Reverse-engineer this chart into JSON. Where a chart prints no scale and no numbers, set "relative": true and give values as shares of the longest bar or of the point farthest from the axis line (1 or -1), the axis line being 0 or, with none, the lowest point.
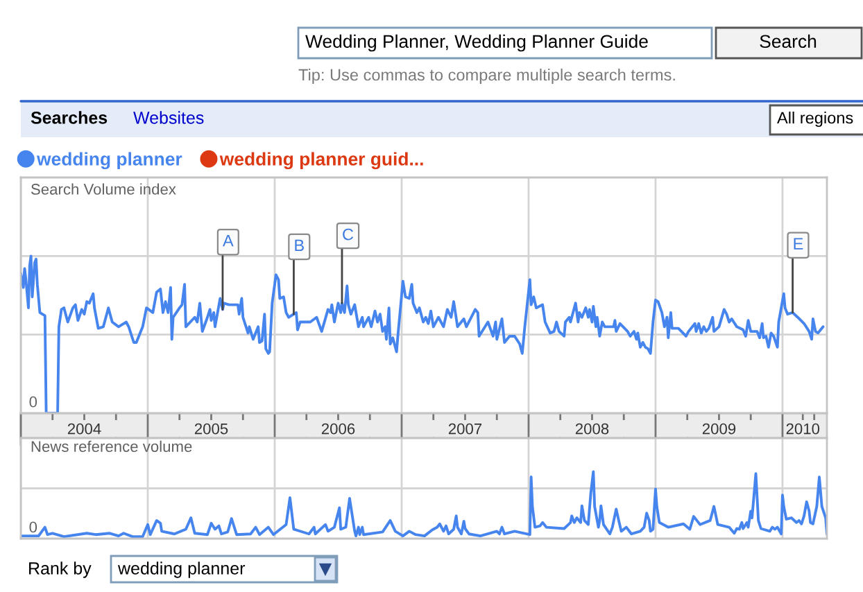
{
  "chart_data": [
    {
      "type": "line",
      "ylabel": "Search Volume index",
      "relative": true,
      "xlim": [
        2004,
        2010.35
      ],
      "xticks": [
        {
          "value": 2004,
          "label": null
        },
        {
          "value": 2004.25,
          "label": null
        },
        {
          "value": 2004.5,
          "label": "2004"
        },
        {
          "value": 2004.75,
          "label": null
        },
        {
          "value": 2005,
          "label": null
        },
        {
          "value": 2005.25,
          "label": null
        },
        {
          "value": 2005.5,
          "label": "2005"
        },
        {
          "value": 2005.75,
          "label": null
        },
        {
          "value": 2006,
          "label": null
        },
        {
          "value": 2006.25,
          "label": null
        },
        {
          "value": 2006.5,
          "label": "2006"
        },
        {
          "value": 2006.75,
          "label": null
        },
        {
          "value": 2007,
          "label": null
        },
        {
          "value": 2007.25,
          "label": null
        },
        {
          "value": 2007.5,
          "label": "2007"
        },
        {
          "value": 2007.75,
          "label": null
        },
        {
          "value": 2008,
          "label": null
        },
        {
          "value": 2008.25,
          "label": null
        },
        {
          "value": 2008.5,
          "label": "2008"
        },
        {
          "value": 2008.75,
          "label": null
        },
        {
          "value": 2009,
          "label": null
        },
        {
          "value": 2009.25,
          "label": null
        },
        {
          "value": 2009.5,
          "label": "2009"
        },
        {
          "value": 2009.75,
          "label": null
        },
        {
          "value": 2010,
          "label": null
        },
        {
          "value": 2010.16,
          "label": "2010"
        },
        {
          "value": 2010.25,
          "label": null
        }
      ],
      "grid": true,
      "legend": "top left",
      "series": [
        {
          "name": "wedding planner",
          "color": "#4684ee",
          "x": [
            2004.0,
            2004.02,
            2004.03,
            2004.04,
            2004.06,
            2004.07,
            2004.08,
            2004.09,
            2004.11,
            2004.12,
            2004.13,
            2004.15,
            2004.19,
            2004.2,
            2004.29,
            2004.3,
            2004.32,
            2004.34,
            2004.37,
            2004.41,
            2004.43,
            2004.45,
            2004.48,
            2004.5,
            2004.52,
            2004.54,
            2004.57,
            2004.58,
            2004.61,
            2004.65,
            2004.69,
            2004.72,
            2004.77,
            2004.83,
            2004.85,
            2004.89,
            2004.91,
            2004.96,
            2004.99,
            2005.04,
            2005.07,
            2005.1,
            2005.12,
            2005.14,
            2005.16,
            2005.18,
            2005.19,
            2005.2,
            2005.25,
            2005.27,
            2005.29,
            2005.3,
            2005.37,
            2005.39,
            2005.41,
            2005.43,
            2005.47,
            2005.49,
            2005.5,
            2005.52,
            2005.53,
            2005.57,
            2005.59,
            2005.6,
            2005.64,
            2005.71,
            2005.72,
            2005.74,
            2005.75,
            2005.79,
            2005.8,
            2005.83,
            2005.87,
            2005.88,
            2005.9,
            2005.92,
            2005.93,
            2005.95,
            2005.96,
            2005.98,
            2006.01,
            2006.03,
            2006.04,
            2006.07,
            2006.09,
            2006.11,
            2006.15,
            2006.17,
            2006.18,
            2006.2,
            2006.28,
            2006.33,
            2006.37,
            2006.42,
            2006.44,
            2006.45,
            2006.47,
            2006.5,
            2006.52,
            2006.53,
            2006.55,
            2006.57,
            2006.58,
            2006.6,
            2006.63,
            2006.66,
            2006.69,
            2006.7,
            2006.74,
            2006.76,
            2006.79,
            2006.81,
            2006.83,
            2006.85,
            2006.87,
            2006.88,
            2006.9,
            2006.91,
            2006.93,
            2006.96,
            2006.97,
            2007.01,
            2007.03,
            2007.06,
            2007.08,
            2007.09,
            2007.12,
            2007.14,
            2007.17,
            2007.19,
            2007.21,
            2007.23,
            2007.25,
            2007.29,
            2007.33,
            2007.36,
            2007.39,
            2007.41,
            2007.44,
            2007.49,
            2007.51,
            2007.58,
            2007.6,
            2007.61,
            2007.68,
            2007.72,
            2007.74,
            2007.75,
            2007.79,
            2007.81,
            2007.85,
            2007.89,
            2007.93,
            2007.95,
            2007.97,
            2008.01,
            2008.02,
            2008.04,
            2008.06,
            2008.11,
            2008.13,
            2008.17,
            2008.2,
            2008.22,
            2008.24,
            2008.28,
            2008.29,
            2008.32,
            2008.33,
            2008.35,
            2008.37,
            2008.39,
            2008.4,
            2008.42,
            2008.45,
            2008.47,
            2008.48,
            2008.5,
            2008.51,
            2008.53,
            2008.54,
            2008.56,
            2008.58,
            2008.6,
            2008.67,
            2008.68,
            2008.69,
            2008.72,
            2008.78,
            2008.8,
            2008.83,
            2008.85,
            2008.86,
            2008.88,
            2008.9,
            2008.92,
            2008.94,
            2008.96,
            2008.98,
            2009.0,
            2009.02,
            2009.05,
            2009.07,
            2009.09,
            2009.1,
            2009.12,
            2009.13,
            2009.18,
            2009.24,
            2009.26,
            2009.31,
            2009.32,
            2009.34,
            2009.36,
            2009.38,
            2009.4,
            2009.42,
            2009.45,
            2009.46,
            2009.5,
            2009.54,
            2009.56,
            2009.58,
            2009.6,
            2009.64,
            2009.69,
            2009.71,
            2009.73,
            2009.75,
            2009.8,
            2009.82,
            2009.84,
            2009.85,
            2009.87,
            2009.89,
            2009.91,
            2009.93,
            2009.96,
            2009.97,
            2009.99,
            2010.01,
            2010.02,
            2010.04,
            2010.08,
            2010.12,
            2010.17,
            2010.21,
            2010.23,
            2010.24,
            2010.26,
            2010.28,
            2010.32
          ],
          "values": [
            0.89,
            0.8,
            0.92,
            0.85,
            0.67,
            0.94,
            1.0,
            0.74,
            0.96,
            0.98,
            0.82,
            0.64,
            0.62,
            0,
            0,
            0.55,
            0.66,
            0.67,
            0.58,
            0.67,
            0.69,
            0.59,
            0.66,
            0.63,
            0.71,
            0.7,
            0.76,
            0.67,
            0.54,
            0.55,
            0.67,
            0.58,
            0.55,
            0.58,
            0.55,
            0.45,
            0.45,
            0.55,
            0.67,
            0.64,
            0.77,
            0.79,
            0.64,
            0.71,
            0.64,
            0.8,
            0.47,
            0.61,
            0.67,
            0.69,
            0.82,
            0.55,
            0.61,
            0.58,
            0.7,
            0.52,
            0.61,
            0.66,
            0.59,
            0.64,
            0.55,
            0.73,
            0.66,
            0.7,
            0.69,
            0.69,
            0.63,
            0.73,
            0.61,
            0.51,
            0.55,
            0.47,
            0.55,
            0.45,
            0.46,
            0.63,
            0.41,
            0.38,
            0.39,
            0.7,
            0.88,
            0.85,
            0.73,
            0.74,
            0.64,
            0.61,
            0.63,
            0.64,
            0.53,
            0.58,
            0.58,
            0.61,
            0.52,
            0.66,
            0.64,
            0.69,
            0.58,
            0.7,
            0.64,
            0.7,
            0.64,
            0.81,
            0.69,
            0.63,
            0.69,
            0.55,
            0.61,
            0.55,
            0.61,
            0.55,
            0.65,
            0.58,
            0.63,
            0.52,
            0.55,
            0.47,
            0.67,
            0.44,
            0.48,
            0.39,
            0.49,
            0.84,
            0.74,
            0.73,
            0.82,
            0.7,
            0.64,
            0.67,
            0.58,
            0.61,
            0.57,
            0.65,
            0.55,
            0.61,
            0.55,
            0.66,
            0.61,
            0.71,
            0.55,
            0.6,
            0.55,
            0.66,
            0.64,
            0.49,
            0.58,
            0.49,
            0.58,
            0.47,
            0.6,
            0.45,
            0.49,
            0.49,
            0.44,
            0.38,
            0.55,
            0.85,
            0.69,
            0.74,
            0.67,
            0.69,
            0.58,
            0.51,
            0.52,
            0.58,
            0.52,
            0.49,
            0.58,
            0.61,
            0.58,
            0.64,
            0.7,
            0.58,
            0.64,
            0.61,
            0.67,
            0.61,
            0.66,
            0.58,
            0.68,
            0.55,
            0.61,
            0.49,
            0.58,
            0.55,
            0.55,
            0.59,
            0.52,
            0.57,
            0.52,
            0.49,
            0.52,
            0.47,
            0.51,
            0.42,
            0.45,
            0.42,
            0.41,
            0.38,
            0.58,
            0.72,
            0.71,
            0.64,
            0.55,
            0.61,
            0.48,
            0.64,
            0.54,
            0.54,
            0.49,
            0.52,
            0.57,
            0.52,
            0.57,
            0.51,
            0.55,
            0.52,
            0.54,
            0.61,
            0.52,
            0.55,
            0.66,
            0.63,
            0.58,
            0.6,
            0.55,
            0.53,
            0.49,
            0.59,
            0.52,
            0.52,
            0.48,
            0.57,
            0.48,
            0.49,
            0.42,
            0.51,
            0.49,
            0.42,
            0.58,
            0.67,
            0.76,
            0.67,
            0.63,
            0.64,
            0.61,
            0.57,
            0.52,
            0.47,
            0.6,
            0.52,
            0.51,
            0.55
          ]
        },
        {
          "name": "wedding planner guid...",
          "color": "#dc3912"
        }
      ],
      "annotations": [
        "Wedding Planner, Wedding Planner Guide",
        "Search",
        "Tip: Use commas to compare multiple search terms.",
        "Searches",
        "Websites",
        "All regions",
        "0",
        {
          "text": "A",
          "x": 2005.59,
          "y": 0.66
        },
        {
          "text": "B",
          "x": 2006.15,
          "y": 0.63
        },
        {
          "text": "C",
          "x": 2006.53,
          "y": 0.7
        },
        {
          "text": "E",
          "x": 2010.08,
          "y": 0.64
        }
      ]
    },
    {
      "type": "line",
      "ylabel": "News reference volume",
      "relative": true,
      "xlim": [
        2004,
        2010.35
      ],
      "xticks": [
        {
          "value": 2004,
          "label": null
        },
        {
          "value": 2005,
          "label": null
        },
        {
          "value": 2006,
          "label": null
        },
        {
          "value": 2007,
          "label": null
        },
        {
          "value": 2008,
          "label": null
        },
        {
          "value": 2009,
          "label": null
        },
        {
          "value": 2010,
          "label": null
        }
      ],
      "grid": true,
      "tick_labels": false,
      "series": [
        {
          "color": "#4684ee",
          "x": [
            2004.0,
            2004.14,
            2004.19,
            2004.21,
            2004.25,
            2004.34,
            2004.52,
            2004.59,
            2004.7,
            2004.77,
            2004.81,
            2004.88,
            2004.96,
            2005.0,
            2005.02,
            2005.07,
            2005.1,
            2005.11,
            2005.21,
            2005.3,
            2005.34,
            2005.37,
            2005.47,
            2005.5,
            2005.53,
            2005.56,
            2005.58,
            2005.63,
            2005.66,
            2005.7,
            2005.81,
            2005.85,
            2005.88,
            2005.95,
            2005.99,
            2006.09,
            2006.12,
            2006.15,
            2006.27,
            2006.31,
            2006.32,
            2006.4,
            2006.42,
            2006.47,
            2006.51,
            2006.52,
            2006.56,
            2006.59,
            2006.63,
            2006.64,
            2006.66,
            2006.67,
            2006.69,
            2006.7,
            2006.85,
            2006.91,
            2006.95,
            2007.01,
            2007.06,
            2007.11,
            2007.18,
            2007.24,
            2007.28,
            2007.3,
            2007.33,
            2007.35,
            2007.37,
            2007.41,
            2007.43,
            2007.44,
            2007.47,
            2007.49,
            2007.5,
            2007.53,
            2007.62,
            2007.75,
            2007.77,
            2007.79,
            2007.81,
            2007.89,
            2008.01,
            2008.02,
            2008.03,
            2008.05,
            2008.09,
            2008.11,
            2008.14,
            2008.28,
            2008.33,
            2008.34,
            2008.36,
            2008.38,
            2008.41,
            2008.42,
            2008.44,
            2008.47,
            2008.49,
            2008.51,
            2008.52,
            2008.55,
            2008.56,
            2008.57,
            2008.59,
            2008.64,
            2008.66,
            2008.69,
            2008.71,
            2008.73,
            2008.77,
            2008.81,
            2008.88,
            2008.91,
            2008.93,
            2008.95,
            2008.96,
            2008.98,
            2009.0,
            2009.01,
            2009.03,
            2009.1,
            2009.22,
            2009.27,
            2009.3,
            2009.33,
            2009.35,
            2009.43,
            2009.46,
            2009.49,
            2009.58,
            2009.62,
            2009.64,
            2009.66,
            2009.68,
            2009.69,
            2009.72,
            2009.73,
            2009.75,
            2009.76,
            2009.79,
            2009.81,
            2009.83,
            2009.9,
            2009.92,
            2009.94,
            2009.96,
            2009.99,
            2010.0,
            2010.01,
            2010.03,
            2010.07,
            2010.11,
            2010.13,
            2010.15,
            2010.17,
            2010.19,
            2010.21,
            2010.22,
            2010.24,
            2010.27,
            2010.29,
            2010.31,
            2010.34,
            2010.35
          ],
          "values": [
            0.04,
            0.04,
            0.17,
            0.06,
            0.08,
            0.03,
            0.08,
            0.06,
            0.08,
            0.04,
            0.08,
            0.03,
            0.03,
            0.21,
            0.06,
            0.27,
            0.23,
            0.11,
            0.07,
            0.14,
            0.31,
            0.08,
            0.06,
            0.23,
            0.14,
            0.19,
            0.07,
            0.1,
            0.3,
            0.06,
            0.07,
            0.17,
            0.06,
            0.17,
            0.06,
            0.21,
            0.61,
            0.14,
            0.07,
            0.17,
            0.07,
            0.21,
            0.11,
            0.17,
            0.46,
            0.14,
            0.17,
            0.6,
            0.11,
            0.04,
            0.17,
            0.06,
            0.17,
            0.06,
            0.1,
            0.27,
            0.11,
            0.04,
            0.11,
            0.06,
            0.04,
            0.13,
            0.17,
            0.22,
            0.11,
            0.19,
            0.07,
            0.14,
            0.34,
            0.17,
            0.07,
            0.26,
            0.15,
            0.07,
            0.04,
            0.11,
            0.07,
            0.17,
            0.07,
            0.11,
            0.06,
            0.92,
            0.48,
            0.17,
            0.19,
            0.24,
            0.17,
            0.15,
            0.24,
            0.34,
            0.24,
            0.31,
            0.24,
            0.49,
            0.27,
            0.21,
            0.68,
            1.0,
            0.48,
            0.17,
            0.27,
            0.49,
            0.21,
            0.07,
            0.17,
            0.44,
            0.27,
            0.11,
            0.17,
            0.07,
            0.11,
            0.17,
            0.38,
            0.27,
            0.11,
            0.14,
            0.74,
            0.48,
            0.24,
            0.17,
            0.22,
            0.14,
            0.33,
            0.26,
            0.21,
            0.27,
            0.48,
            0.21,
            0.17,
            0.08,
            0.15,
            0.14,
            0.24,
            0.15,
            0.24,
            0.17,
            0.41,
            0.31,
            0.97,
            0.27,
            0.15,
            0.11,
            0.17,
            0.14,
            0.17,
            0.07,
            0.65,
            0.48,
            0.29,
            0.31,
            0.24,
            0.27,
            0.22,
            0.34,
            0.55,
            0.41,
            0.24,
            0.22,
            0.48,
            0.92,
            0.48,
            0.31,
            0.07
          ]
        }
      ],
      "annotations": [
        "0",
        "Rank by",
        "wedding planner"
      ]
    }
  ]
}
